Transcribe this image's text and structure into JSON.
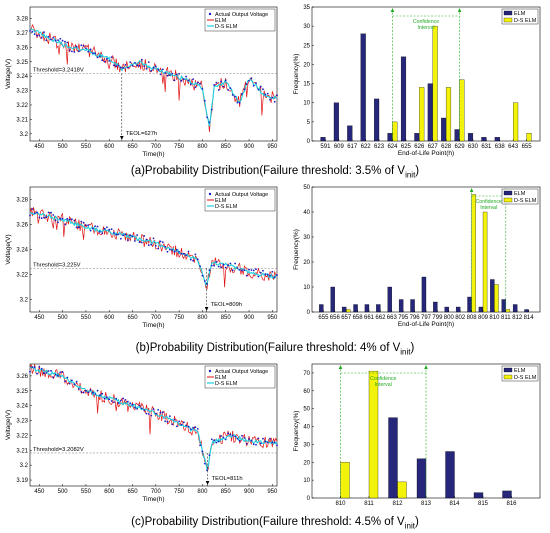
{
  "colors": {
    "actual": "#1c1cc8",
    "elm": "#e01010",
    "ds": "#1ad0e0",
    "bar_elm": "#26267a",
    "bar_ds": "#f2f20a",
    "ci": "#22aa22",
    "ref": "#777777"
  },
  "captions": [
    {
      "prefix": "(a)Probability Distribution(Failure threshold: 3.5% of V",
      "sub": "init",
      ")": ")"
    },
    {
      "prefix": "(b)Probability Distribution(Failure threshold: 4% of V",
      "sub": "init",
      ")": ")"
    },
    {
      "prefix": "(c)Probability Distribution(Failure threshold: 4.5% of V",
      "sub": "init",
      ")": ")"
    }
  ],
  "chart_data": [
    {
      "type": "line",
      "panel": "a-time",
      "xlabel": "Time(h)",
      "ylabel": "Voltage(V)",
      "xlim": [
        430,
        960
      ],
      "ylim": [
        3.195,
        3.288
      ],
      "xticks": [
        450,
        500,
        550,
        600,
        650,
        700,
        750,
        800,
        850,
        900,
        950
      ],
      "yticks": [
        3.2,
        3.21,
        3.22,
        3.23,
        3.24,
        3.25,
        3.26,
        3.27,
        3.28
      ],
      "yticklabels": [
        "3.2",
        "3.21",
        "3.22",
        "3.23",
        "3.24",
        "3.25",
        "3.26",
        "3.27",
        "3.28"
      ],
      "legend": [
        "Actual Output Voltage",
        "ELM",
        "D-S ELM"
      ],
      "threshold_label": "Threshold=3.2418V",
      "threshold": 3.2418,
      "tdol_label": "TEOL=627h",
      "tdol": 627,
      "anchors": [
        [
          430,
          3.273
        ],
        [
          460,
          3.268
        ],
        [
          500,
          3.262
        ],
        [
          550,
          3.258
        ],
        [
          600,
          3.252
        ],
        [
          627,
          3.245
        ],
        [
          660,
          3.25
        ],
        [
          700,
          3.245
        ],
        [
          760,
          3.238
        ],
        [
          800,
          3.232
        ],
        [
          815,
          3.205
        ],
        [
          825,
          3.232
        ],
        [
          850,
          3.236
        ],
        [
          880,
          3.222
        ],
        [
          900,
          3.238
        ],
        [
          930,
          3.228
        ],
        [
          960,
          3.224
        ]
      ]
    },
    {
      "type": "bar",
      "panel": "a-dist",
      "xlabel": "End-of-Life Point(h)",
      "ylabel": "Frequency(%)",
      "categories": [
        "591",
        "609",
        "617",
        "622",
        "623",
        "624",
        "625",
        "626",
        "627",
        "628",
        "629",
        "630",
        "631",
        "638",
        "643",
        "655"
      ],
      "series": [
        {
          "name": "ELM",
          "values": [
            1,
            10,
            4,
            28,
            11,
            2,
            22,
            2,
            15,
            6,
            3,
            2,
            1,
            1,
            0,
            0
          ]
        },
        {
          "name": "D-S ELM",
          "values": [
            0,
            0,
            0,
            0,
            0,
            5,
            0,
            14,
            30,
            14,
            16,
            0,
            0,
            0,
            10,
            2
          ]
        }
      ],
      "ylim": [
        0,
        35
      ],
      "yticks": [
        0,
        5,
        10,
        15,
        20,
        25,
        30,
        35
      ],
      "legend": [
        "ELM",
        "D-S ELM"
      ],
      "ci_label": [
        "Confidence",
        "Interval"
      ],
      "ci_range": [
        "624",
        "629"
      ]
    },
    {
      "type": "line",
      "panel": "b-time",
      "xlabel": "Time(h)",
      "ylabel": "Voltage(V)",
      "xlim": [
        430,
        960
      ],
      "ylim": [
        3.19,
        3.29
      ],
      "xticks": [
        450,
        500,
        550,
        600,
        650,
        700,
        750,
        800,
        850,
        900,
        950
      ],
      "yticks": [
        3.2,
        3.22,
        3.24,
        3.26,
        3.28
      ],
      "yticklabels": [
        "3.2",
        "3.22",
        "3.24",
        "3.26",
        "3.28"
      ],
      "legend": [
        "Actual Output Voltage",
        "ELM",
        "D-S ELM"
      ],
      "threshold_label": "Threshold=3.225V",
      "threshold": 3.225,
      "tdol_label": "TEOL=809h",
      "tdol": 809,
      "anchors": [
        [
          430,
          3.27
        ],
        [
          500,
          3.264
        ],
        [
          550,
          3.258
        ],
        [
          600,
          3.254
        ],
        [
          650,
          3.25
        ],
        [
          700,
          3.245
        ],
        [
          750,
          3.238
        ],
        [
          790,
          3.232
        ],
        [
          809,
          3.21
        ],
        [
          820,
          3.23
        ],
        [
          850,
          3.228
        ],
        [
          900,
          3.222
        ],
        [
          960,
          3.218
        ]
      ]
    },
    {
      "type": "bar",
      "panel": "b-dist",
      "xlabel": "End-of-Life Point(h)",
      "ylabel": "Frequency(%)",
      "categories": [
        "655",
        "656",
        "657",
        "658",
        "661",
        "662",
        "663",
        "795",
        "796",
        "797",
        "799",
        "800",
        "802",
        "808",
        "809",
        "810",
        "811",
        "812",
        "814"
      ],
      "series": [
        {
          "name": "ELM",
          "values": [
            3,
            10,
            2,
            3,
            3,
            3,
            10,
            5,
            5,
            14,
            4,
            2,
            2,
            6,
            2,
            13,
            5,
            3,
            1
          ]
        },
        {
          "name": "D-S ELM",
          "values": [
            0,
            0,
            1,
            0,
            0,
            0,
            0,
            0,
            0,
            0,
            0,
            0,
            0,
            47,
            40,
            11,
            1,
            0,
            0
          ]
        }
      ],
      "ylim": [
        0,
        50
      ],
      "yticks": [
        0,
        10,
        20,
        30,
        40,
        50
      ],
      "legend": [
        "ELM",
        "D-S ELM"
      ],
      "ci_label": [
        "Confidence",
        "Interval"
      ],
      "ci_range": [
        "808",
        "811"
      ]
    },
    {
      "type": "line",
      "panel": "c-time",
      "xlabel": "Time(h)",
      "ylabel": "Voltage(V)",
      "xlim": [
        430,
        960
      ],
      "ylim": [
        3.186,
        3.268
      ],
      "xticks": [
        450,
        500,
        550,
        600,
        650,
        700,
        750,
        800,
        850,
        900,
        950
      ],
      "yticks": [
        3.19,
        3.2,
        3.21,
        3.22,
        3.23,
        3.24,
        3.25,
        3.26
      ],
      "yticklabels": [
        "3.19",
        "3.2",
        "3.21",
        "3.22",
        "3.23",
        "3.24",
        "3.25",
        "3.26"
      ],
      "legend": [
        "Actual Output Voltage",
        "ELM",
        "D-S ELM"
      ],
      "threshold_label": "Threshold=3.2082V",
      "threshold": 3.2082,
      "tdol_label": "TEOL=811h",
      "tdol": 811,
      "anchors": [
        [
          430,
          3.265
        ],
        [
          500,
          3.26
        ],
        [
          550,
          3.25
        ],
        [
          600,
          3.245
        ],
        [
          650,
          3.24
        ],
        [
          700,
          3.235
        ],
        [
          750,
          3.228
        ],
        [
          790,
          3.222
        ],
        [
          811,
          3.196
        ],
        [
          820,
          3.215
        ],
        [
          860,
          3.22
        ],
        [
          900,
          3.216
        ],
        [
          960,
          3.215
        ]
      ]
    },
    {
      "type": "bar",
      "panel": "c-dist",
      "xlabel": "",
      "ylabel": "Frequency(%)",
      "categories": [
        "810",
        "811",
        "812",
        "813",
        "814",
        "815",
        "816"
      ],
      "series": [
        {
          "name": "ELM",
          "values": [
            0,
            0,
            45,
            22,
            26,
            3,
            4
          ]
        },
        {
          "name": "D-S ELM",
          "values": [
            20,
            71,
            9,
            0,
            0,
            0,
            0
          ]
        }
      ],
      "ylim": [
        0,
        75
      ],
      "yticks": [
        0,
        10,
        20,
        30,
        40,
        50,
        60,
        70
      ],
      "legend": [
        "ELM",
        "D-S ELM"
      ],
      "ci_label": [
        "Confidence",
        "Interval"
      ],
      "ci_range": [
        "810",
        "813"
      ]
    }
  ]
}
